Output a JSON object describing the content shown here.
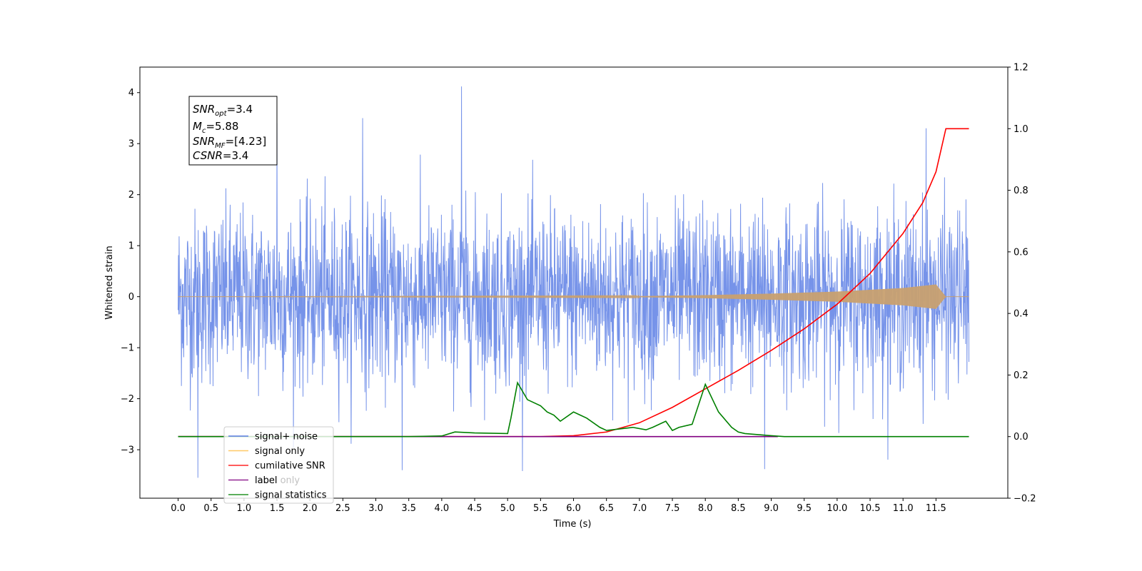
{
  "chart_data": {
    "type": "line",
    "xlabel": "Time (s)",
    "ylabel": "Whitened strain",
    "xlim": [
      -0.58,
      12.59
    ],
    "ylim": [
      -3.95,
      4.5
    ],
    "y2lim": [
      -0.2,
      1.2
    ],
    "x_tick_labels": [
      "0.0",
      "0.5",
      "1.0",
      "1.5",
      "2.0",
      "2.5",
      "3.0",
      "3.5",
      "4.0",
      "4.5",
      "5.0",
      "5.5",
      "6.0",
      "6.5",
      "7.0",
      "7.5",
      "8.0",
      "8.5",
      "9.0",
      "9.5",
      "10.0",
      "10.5",
      "11.0",
      "11.5"
    ],
    "y_tick_labels": [
      "4",
      "3",
      "2",
      "1",
      "0",
      "−1",
      "−2",
      "−3"
    ],
    "y_tick_values": [
      4,
      3,
      2,
      1,
      0,
      -1,
      -2,
      -3
    ],
    "y2_tick_labels": [
      "1.2",
      "1.0",
      "0.8",
      "0.6",
      "0.4",
      "0.2",
      "0.0",
      "−0.2"
    ],
    "y2_tick_values": [
      1.2,
      1.0,
      0.8,
      0.6,
      0.4,
      0.2,
      0.0,
      -0.2
    ],
    "annotation": {
      "snr_opt_label": "SNR",
      "snr_opt_sub": "opt",
      "snr_opt_value": "=3.4",
      "mc_label": "M",
      "mc_sub": "c",
      "mc_value": "=5.88",
      "snr_mf_label": "SNR",
      "snr_mf_sub": "MF",
      "snr_mf_value": "=[4.23]",
      "csnr_label": "CSNR",
      "csnr_value": "=3.4"
    },
    "legend": {
      "placement": "lower-left",
      "entries": [
        {
          "label": "signal+ noise",
          "color": "#4169e1"
        },
        {
          "label": "signal only",
          "color": "#ffa500"
        },
        {
          "label": "cumilative SNR",
          "color": "#ff0000"
        },
        {
          "label": "label",
          "color": "#800080"
        },
        {
          "label": "signal statistics",
          "color": "#008000"
        }
      ]
    },
    "hidden_legend_text": "label only",
    "series": [
      {
        "name": "signal+ noise",
        "color": "#4169e1",
        "axis": "left",
        "x_range": [
          0.0,
          12.0
        ],
        "spread_sigma": 0.85,
        "notable_peaks": [
          [
            4.3,
            4.12
          ],
          [
            1.5,
            3.4
          ],
          [
            0.3,
            -3.55
          ],
          [
            3.4,
            -3.4
          ],
          [
            8.9,
            -3.38
          ],
          [
            2.8,
            3.5
          ],
          [
            11.35,
            3.3
          ]
        ]
      },
      {
        "name": "signal only",
        "color": "#c8a070",
        "axis": "left",
        "x": [
          0.0,
          7.0,
          8.0,
          9.0,
          10.0,
          11.0,
          11.5,
          11.65,
          12.0
        ],
        "amplitude": [
          0.0,
          0.01,
          0.03,
          0.06,
          0.1,
          0.17,
          0.24,
          0.0,
          0.0
        ]
      },
      {
        "name": "cumilative SNR",
        "color": "#ff0000",
        "axis": "right",
        "x": [
          5.5,
          6.0,
          6.5,
          7.0,
          7.5,
          8.0,
          8.5,
          9.0,
          9.5,
          10.0,
          10.5,
          11.0,
          11.3,
          11.5,
          11.65,
          12.0
        ],
        "y": [
          0.0,
          0.003,
          0.015,
          0.045,
          0.095,
          0.155,
          0.215,
          0.28,
          0.35,
          0.43,
          0.53,
          0.66,
          0.76,
          0.86,
          1.0,
          1.0
        ]
      },
      {
        "name": "label",
        "color": "#800080",
        "axis": "right",
        "x": [
          0.0,
          9.1
        ],
        "y": [
          0.0,
          0.0
        ]
      },
      {
        "name": "signal statistics",
        "color": "#008000",
        "axis": "right",
        "x": [
          0.0,
          3.5,
          4.0,
          4.2,
          4.5,
          5.0,
          5.05,
          5.15,
          5.3,
          5.5,
          5.6,
          5.7,
          5.8,
          6.0,
          6.1,
          6.2,
          6.4,
          6.5,
          6.7,
          6.9,
          7.1,
          7.2,
          7.4,
          7.5,
          7.6,
          7.8,
          8.0,
          8.2,
          8.4,
          8.5,
          8.6,
          9.0,
          9.2,
          12.0
        ],
        "y": [
          0.0,
          0.0,
          0.002,
          0.015,
          0.012,
          0.01,
          0.06,
          0.175,
          0.12,
          0.1,
          0.08,
          0.07,
          0.05,
          0.08,
          0.07,
          0.06,
          0.03,
          0.02,
          0.025,
          0.03,
          0.022,
          0.03,
          0.05,
          0.02,
          0.03,
          0.04,
          0.17,
          0.08,
          0.03,
          0.015,
          0.01,
          0.003,
          0.0,
          0.0
        ]
      }
    ]
  }
}
